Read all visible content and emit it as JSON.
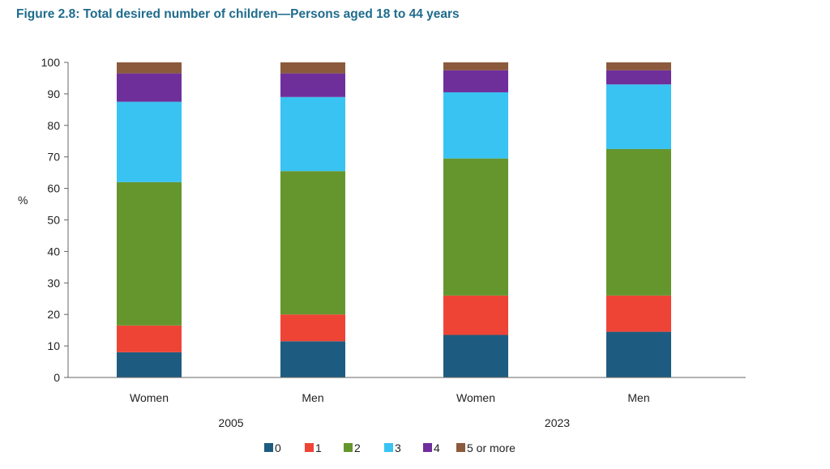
{
  "chart_data": {
    "type": "bar",
    "stacked": true,
    "title": "Figure 2.8: Total desired number of children—Persons aged 18 to 44 years",
    "ylabel": "%",
    "ylim": [
      0,
      100
    ],
    "yticks": [
      0,
      10,
      20,
      30,
      40,
      50,
      60,
      70,
      80,
      90,
      100
    ],
    "grid": false,
    "legend_position": "bottom",
    "groups": [
      {
        "label": "2005",
        "categories": [
          "Women",
          "Men"
        ]
      },
      {
        "label": "2023",
        "categories": [
          "Women",
          "Men"
        ]
      }
    ],
    "categories": [
      "Women",
      "Men",
      "Women",
      "Men"
    ],
    "series": [
      {
        "name": "0",
        "color": "#1d5c80",
        "values": [
          8,
          11.5,
          13.5,
          14.5
        ]
      },
      {
        "name": "1",
        "color": "#ee4436",
        "values": [
          8.5,
          8.5,
          12.5,
          11.5
        ]
      },
      {
        "name": "2",
        "color": "#65962e",
        "values": [
          45.5,
          45.5,
          43.5,
          46.5
        ]
      },
      {
        "name": "3",
        "color": "#39c3f2",
        "values": [
          25.5,
          23.5,
          21,
          20.5
        ]
      },
      {
        "name": "4",
        "color": "#6f2f9b",
        "values": [
          9,
          7.5,
          7,
          4.5
        ]
      },
      {
        "name": "5 or more",
        "color": "#8b5a3c",
        "values": [
          3.5,
          3.5,
          2.5,
          2.5
        ]
      }
    ]
  }
}
